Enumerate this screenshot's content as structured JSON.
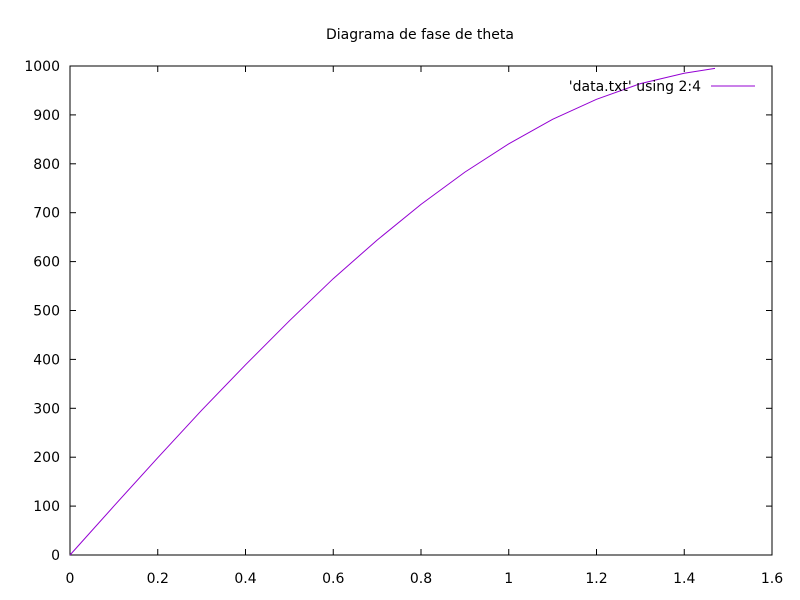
{
  "chart_data": {
    "type": "line",
    "title": "Diagrama de fase de theta",
    "xlabel": "",
    "ylabel": "",
    "xlim": [
      0,
      1.6
    ],
    "ylim": [
      0,
      1000
    ],
    "x_ticks": [
      0,
      0.2,
      0.4,
      0.6,
      0.8,
      1,
      1.2,
      1.4,
      1.6
    ],
    "y_ticks": [
      0,
      100,
      200,
      300,
      400,
      500,
      600,
      700,
      800,
      900,
      1000
    ],
    "x_tick_labels": [
      "0",
      "0.2",
      "0.4",
      "0.6",
      "0.8",
      "1",
      "1.2",
      "1.4",
      "1.6"
    ],
    "y_tick_labels": [
      "0",
      "100",
      "200",
      "300",
      "400",
      "500",
      "600",
      "700",
      "800",
      "900",
      "1000"
    ],
    "grid": false,
    "legend_position": "top-right",
    "series": [
      {
        "name": "'data.txt' using 2:4",
        "color": "#9400d3",
        "x": [
          0,
          0.1,
          0.2,
          0.3,
          0.4,
          0.5,
          0.6,
          0.7,
          0.8,
          0.9,
          1.0,
          1.1,
          1.2,
          1.3,
          1.4,
          1.47
        ],
        "y": [
          0,
          100,
          199,
          296,
          389,
          479,
          565,
          644,
          717,
          783,
          841,
          891,
          932,
          964,
          985,
          995
        ]
      }
    ]
  }
}
